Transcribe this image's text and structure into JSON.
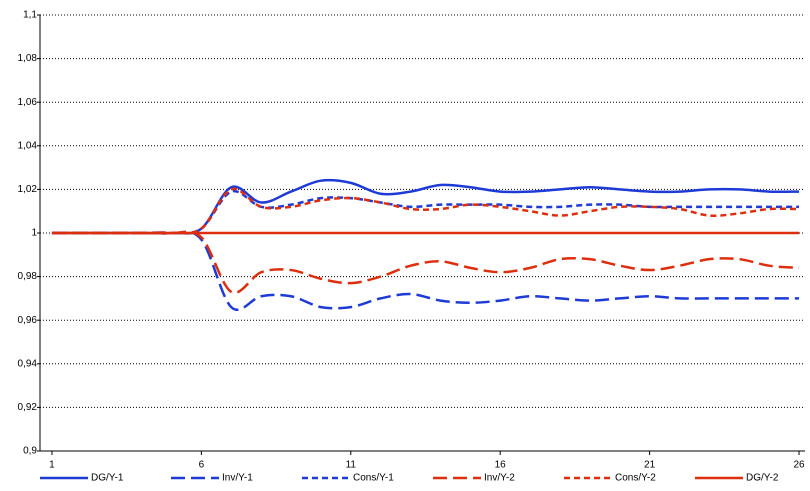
{
  "chart_data": {
    "type": "line",
    "x": [
      1,
      2,
      3,
      4,
      5,
      6,
      7,
      8,
      9,
      10,
      11,
      12,
      13,
      14,
      15,
      16,
      17,
      18,
      19,
      20,
      21,
      22,
      23,
      24,
      25,
      26
    ],
    "xlim": [
      0.6,
      26.2
    ],
    "xticks": [
      1,
      6,
      11,
      16,
      21,
      26
    ],
    "ylim": [
      0.9,
      1.1
    ],
    "yticks": [
      {
        "value": 0.9,
        "label": "0,9"
      },
      {
        "value": 0.92,
        "label": "0,92"
      },
      {
        "value": 0.94,
        "label": "0,94"
      },
      {
        "value": 0.96,
        "label": "0,96"
      },
      {
        "value": 0.98,
        "label": "0,98"
      },
      1,
      {
        "value": 1.02,
        "label": "1,02"
      },
      {
        "value": 1.04,
        "label": "1,04"
      },
      {
        "value": 1.06,
        "label": "1,06"
      },
      {
        "value": 1.08,
        "label": "1,08"
      },
      {
        "value": 1.1,
        "label": "1,1"
      }
    ],
    "grid": true,
    "legend": "bottom",
    "series": [
      {
        "name": "DG/Y-1",
        "color": "#1f3bd6",
        "line_style": "solid",
        "values": [
          1,
          1,
          1,
          1,
          1,
          1.002,
          1.021,
          1.014,
          1.019,
          1.024,
          1.023,
          1.018,
          1.019,
          1.022,
          1.021,
          1.019,
          1.019,
          1.02,
          1.021,
          1.02,
          1.019,
          1.019,
          1.02,
          1.02,
          1.019,
          1.019
        ]
      },
      {
        "name": "Inv/Y-1",
        "color": "#1f3bd6",
        "line_style": "long-dash",
        "values": [
          1,
          1,
          1,
          1,
          1,
          0.997,
          0.966,
          0.971,
          0.971,
          0.966,
          0.966,
          0.97,
          0.972,
          0.969,
          0.968,
          0.969,
          0.971,
          0.97,
          0.969,
          0.97,
          0.971,
          0.97,
          0.97,
          0.97,
          0.97,
          0.97
        ]
      },
      {
        "name": "Cons/Y-1",
        "color": "#1f3bd6",
        "line_style": "short-dash",
        "values": [
          1,
          1,
          1,
          1,
          1,
          1.002,
          1.019,
          1.012,
          1.013,
          1.016,
          1.016,
          1.014,
          1.012,
          1.013,
          1.013,
          1.013,
          1.012,
          1.012,
          1.013,
          1.013,
          1.012,
          1.012,
          1.012,
          1.012,
          1.012,
          1.012
        ]
      },
      {
        "name": "Inv/Y-2",
        "color": "#dd2e0e",
        "line_style": "long-dash",
        "values": [
          1,
          1,
          1,
          1,
          1,
          0.998,
          0.973,
          0.982,
          0.983,
          0.979,
          0.977,
          0.98,
          0.985,
          0.987,
          0.984,
          0.982,
          0.984,
          0.988,
          0.988,
          0.985,
          0.983,
          0.985,
          0.988,
          0.988,
          0.985,
          0.984
        ]
      },
      {
        "name": "Cons/Y-2",
        "color": "#dd2e0e",
        "line_style": "short-dash",
        "values": [
          1,
          1,
          1,
          1,
          1,
          1.002,
          1.02,
          1.012,
          1.012,
          1.015,
          1.016,
          1.014,
          1.011,
          1.011,
          1.013,
          1.012,
          1.01,
          1.008,
          1.01,
          1.012,
          1.012,
          1.011,
          1.008,
          1.009,
          1.011,
          1.011
        ]
      },
      {
        "name": "DG/Y-2",
        "color": "#dd2e0e",
        "line_style": "solid",
        "values": [
          1,
          1,
          1,
          1,
          1,
          1,
          1,
          1,
          1,
          1,
          1,
          1,
          1,
          1,
          1,
          1,
          1,
          1,
          1,
          1,
          1,
          1,
          1,
          1,
          1,
          1
        ]
      }
    ]
  }
}
